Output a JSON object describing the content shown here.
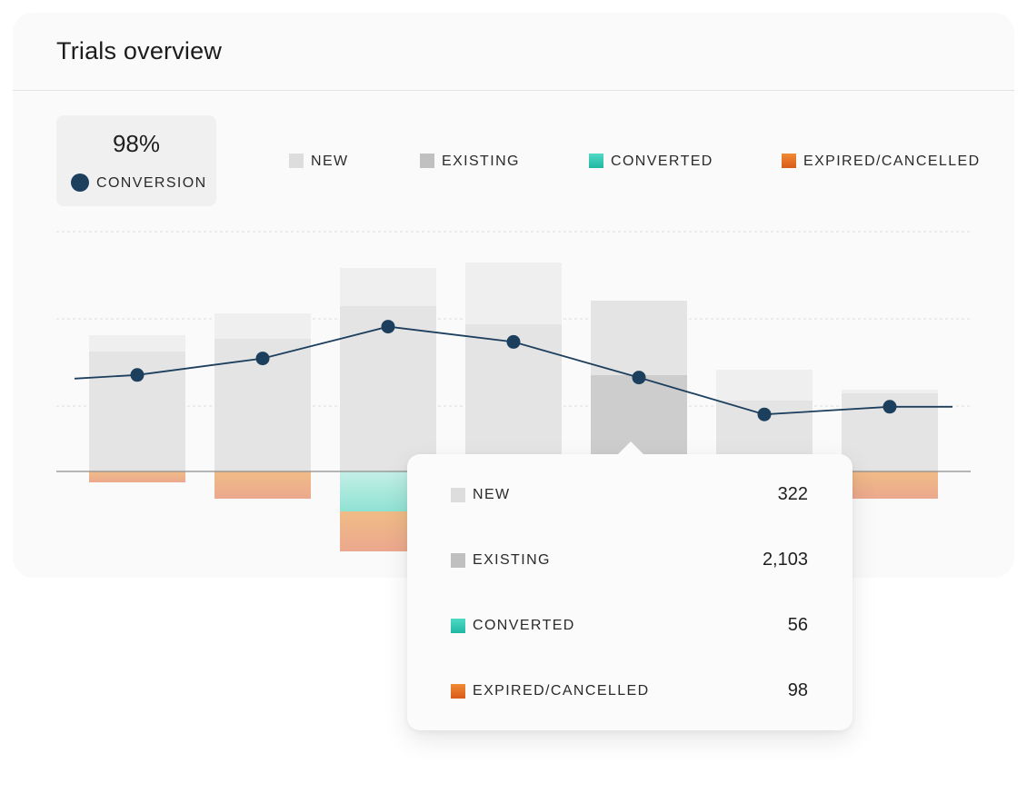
{
  "card": {
    "title": "Trials overview"
  },
  "summary": {
    "value": "98%",
    "label": "CONVERSION",
    "dot_color": "#1d3f5e"
  },
  "legend": [
    {
      "label": "NEW",
      "color": "#dddddd"
    },
    {
      "label": "EXISTING",
      "color": "#c0c0c0"
    },
    {
      "label": "CONVERTED",
      "color": "#1fb7a2"
    },
    {
      "label": "EXPIRED/CANCELLED",
      "color": "#e0671f"
    }
  ],
  "tooltip": {
    "rows": [
      {
        "label": "NEW",
        "value": "322"
      },
      {
        "label": "EXISTING",
        "value": "2,103"
      },
      {
        "label": "CONVERTED",
        "value": "56"
      },
      {
        "label": "EXPIRED/CANCELLED",
        "value": "98"
      }
    ]
  },
  "chart_data": {
    "type": "bar",
    "categories": [
      "",
      "",
      "",
      "",
      "",
      "",
      ""
    ],
    "series": [
      {
        "name": "NEW",
        "values": [
          18,
          28,
          42,
          68,
          82,
          34,
          4
        ],
        "color": "#f0f0f0"
      },
      {
        "name": "EXISTING",
        "values": [
          132,
          146,
          182,
          162,
          106,
          78,
          86
        ],
        "color": "#e4e4e4"
      },
      {
        "name": "CONVERTED",
        "values": [
          0,
          0,
          -44,
          0,
          0,
          0,
          0
        ],
        "color": "#aee8dc"
      },
      {
        "name": "EXPIRED/CANCELLED",
        "values": [
          -12,
          -30,
          -44,
          0,
          0,
          0,
          -30
        ],
        "color": "#efb48c"
      },
      {
        "name": "CONVERSION",
        "type": "line",
        "values": [
          58,
          71,
          96,
          84,
          56,
          27,
          33
        ],
        "color": "#1d3f5e"
      }
    ],
    "highlighted_index": 4,
    "grid": true,
    "legend_position": "top"
  }
}
